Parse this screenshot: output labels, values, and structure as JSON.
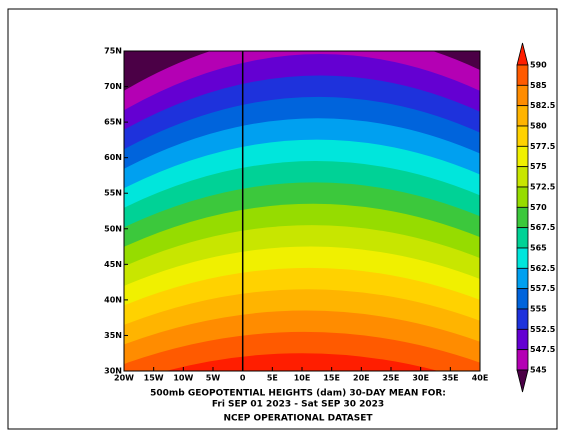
{
  "map": {
    "lat_labels": [
      "75N",
      "70N",
      "65N",
      "60N",
      "55N",
      "50N",
      "45N",
      "40N",
      "35N",
      "30N"
    ],
    "lon_labels": [
      "20W",
      "15W",
      "10W",
      "5W",
      "0",
      "5E",
      "10E",
      "15E",
      "20E",
      "25E",
      "30E",
      "35E",
      "40E"
    ],
    "colorbar": {
      "labels": [
        "590",
        "585",
        "582.5",
        "580",
        "577.5",
        "575",
        "572.5",
        "570",
        "567.5",
        "565",
        "562.5",
        "557.5",
        "555",
        "552.5",
        "547.5",
        "545"
      ],
      "colors": [
        "#ff1e00",
        "#ff5a00",
        "#ff8c00",
        "#ffb400",
        "#ffd200",
        "#f0f000",
        "#c8e600",
        "#96dc00",
        "#3cc83c",
        "#00d296",
        "#00e6dc",
        "#00a0f0",
        "#0064dc",
        "#1e32dc",
        "#6400d2",
        "#b400b4",
        "#4b0046"
      ]
    },
    "caption": [
      "500mb GEOPOTENTIAL HEIGHTS (dam)    30-DAY MEAN FOR:",
      "Fri SEP 01 2023 - Sat SEP 30 2023"
    ],
    "source": "NCEP OPERATIONAL DATASET"
  }
}
